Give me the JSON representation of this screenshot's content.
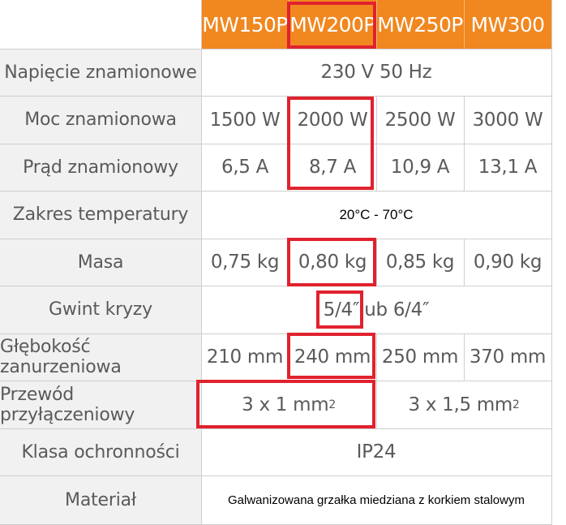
{
  "header": {
    "models": [
      "MW150P",
      "MW200P",
      "MW250P",
      "MW300"
    ]
  },
  "rows": {
    "napiecie": {
      "label": "Napięcie znamionowe",
      "value": "230 V 50 Hz"
    },
    "moc": {
      "label": "Moc znamionowa",
      "values": [
        "1500 W",
        "2000 W",
        "2500 W",
        "3000 W"
      ]
    },
    "prad": {
      "label": "Prąd znamionowy",
      "values": [
        "6,5 A",
        "8,7 A",
        "10,9 A",
        "13,1 A"
      ]
    },
    "zakres": {
      "label": "Zakres temperatury",
      "value": "20°C - 70°C"
    },
    "masa": {
      "label": "Masa",
      "values": [
        "0,75 kg",
        "0,80 kg",
        "0,85 kg",
        "0,90 kg"
      ]
    },
    "gwint": {
      "label": "Gwint kryzy",
      "value_a": "5/4″",
      "value_b": " lub 6/4″"
    },
    "glebokosc": {
      "label": "Głębokość zanurzeniowa",
      "values": [
        "210 mm",
        "240 mm",
        "250 mm",
        "370 mm"
      ]
    },
    "przewod": {
      "label": "Przewód przyłączeniowy",
      "value_a": "3 x 1 mm",
      "value_b": "3 x 1,5 mm",
      "unit_exp": "2"
    },
    "klasa": {
      "label": "Klasa ochronności",
      "value": "IP24"
    },
    "material": {
      "label": "Materiał",
      "value": "Galwanizowana grzałka miedziana z korkiem stalowym"
    }
  },
  "colors": {
    "header_bg": "#f0871f",
    "label_bg": "#f1f1f1",
    "highlight": "#e0222e",
    "text": "#5a5a5a"
  }
}
